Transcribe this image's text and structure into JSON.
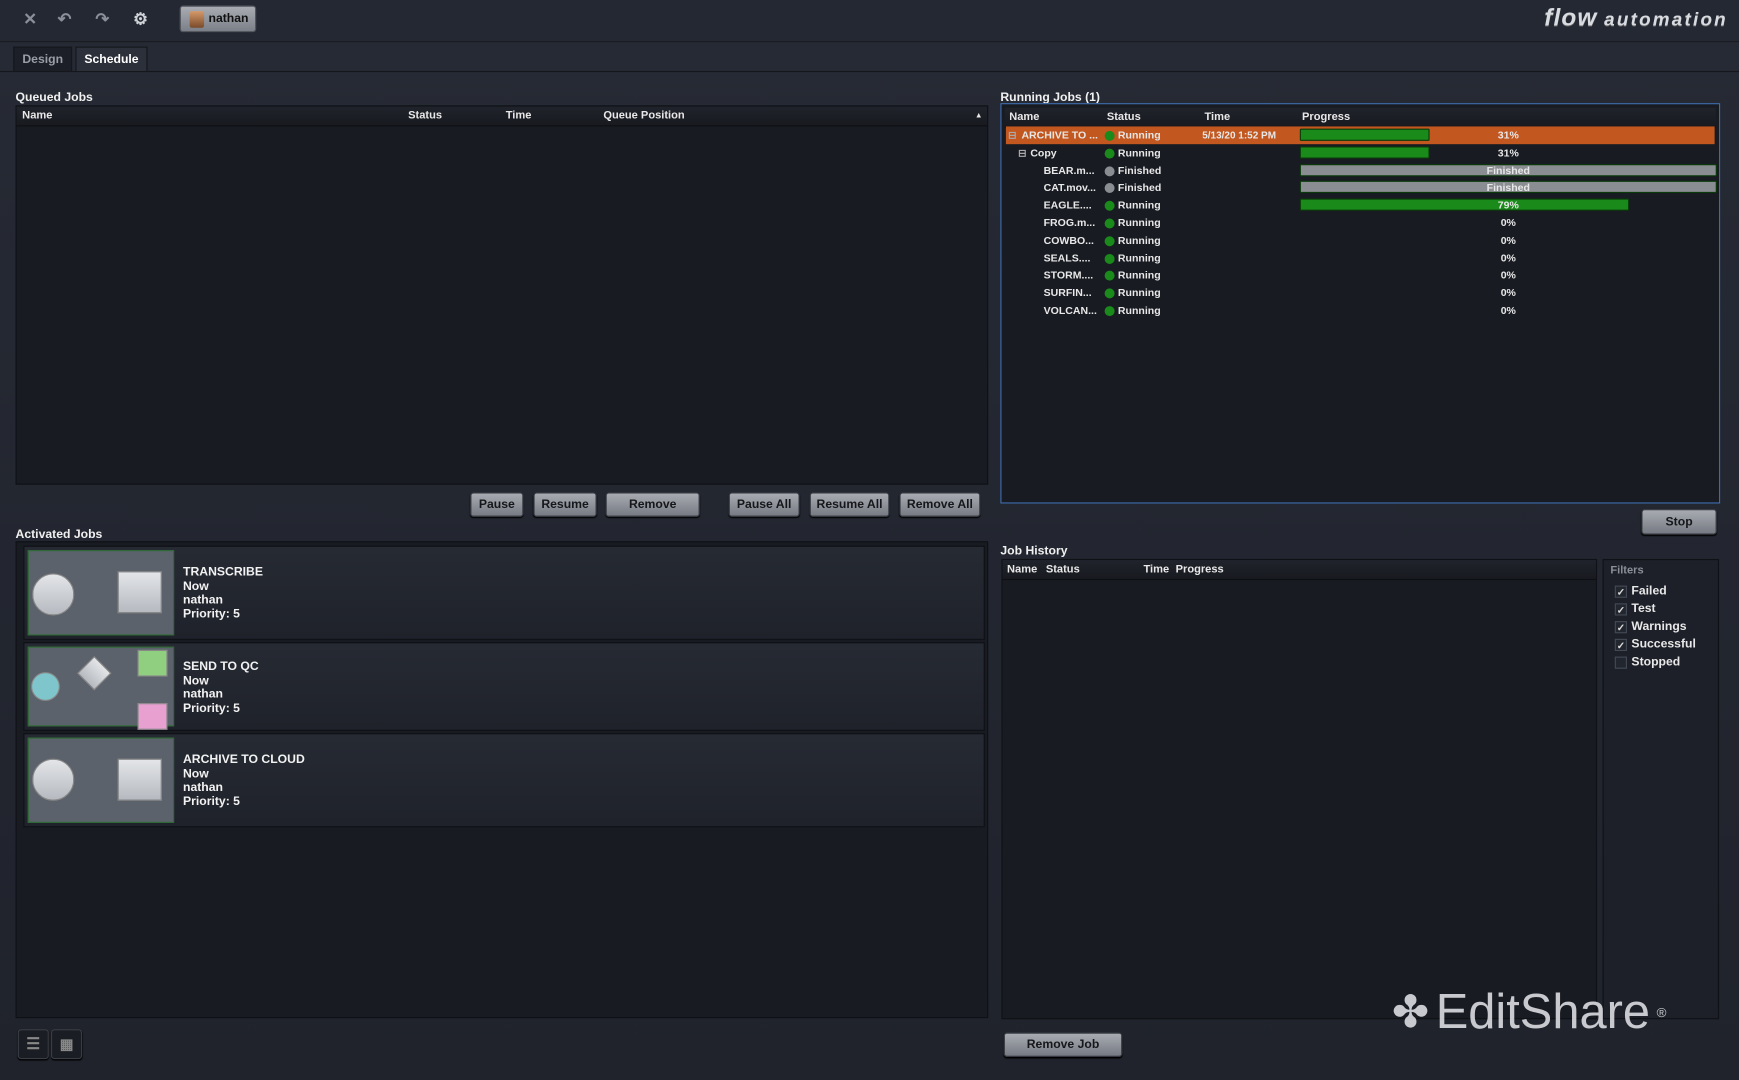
{
  "toolbar": {
    "icons": [
      "close-icon",
      "undo-icon",
      "redo-icon",
      "gears-icon"
    ],
    "user": "nathan"
  },
  "brand": {
    "logo_main": "flow",
    "logo_sub": "automation",
    "watermark": "EditShare"
  },
  "tabs": [
    {
      "label": "Design",
      "active": false
    },
    {
      "label": "Schedule",
      "active": true
    }
  ],
  "queued": {
    "title": "Queued Jobs",
    "columns": [
      "Name",
      "Status",
      "Time",
      "Queue Position"
    ],
    "buttons": [
      "Pause",
      "Resume",
      "Remove",
      "Pause All",
      "Resume All",
      "Remove All"
    ]
  },
  "activated": {
    "title": "Activated Jobs",
    "jobs": [
      {
        "name": "TRANSCRIBE",
        "when": "Now",
        "user": "nathan",
        "priority": "Priority: 5"
      },
      {
        "name": "SEND TO QC",
        "when": "Now",
        "user": "nathan",
        "priority": "Priority: 5"
      },
      {
        "name": "ARCHIVE TO CLOUD",
        "when": "Now",
        "user": "nathan",
        "priority": "Priority: 5"
      }
    ]
  },
  "running": {
    "title": "Running Jobs (1)",
    "columns": [
      "Name",
      "Status",
      "Time",
      "Progress"
    ],
    "rows": [
      {
        "name": "ARCHIVE TO ...",
        "status": "Running",
        "time": "5/13/20 1:52 PM",
        "progress": 31,
        "label": "31%"
      },
      {
        "name": "Copy",
        "status": "Running",
        "time": "",
        "progress": 31,
        "label": "31%"
      },
      {
        "name": "BEAR.m...",
        "status": "Finished",
        "time": "",
        "progress": 100,
        "label": "Finished"
      },
      {
        "name": "CAT.mov...",
        "status": "Finished",
        "time": "",
        "progress": 100,
        "label": "Finished"
      },
      {
        "name": "EAGLE....",
        "status": "Running",
        "time": "",
        "progress": 79,
        "label": "79%"
      },
      {
        "name": "FROG.m...",
        "status": "Running",
        "time": "",
        "progress": 0,
        "label": "0%"
      },
      {
        "name": "COWBO...",
        "status": "Running",
        "time": "",
        "progress": 0,
        "label": "0%"
      },
      {
        "name": "SEALS....",
        "status": "Running",
        "time": "",
        "progress": 0,
        "label": "0%"
      },
      {
        "name": "STORM....",
        "status": "Running",
        "time": "",
        "progress": 0,
        "label": "0%"
      },
      {
        "name": "SURFIN...",
        "status": "Running",
        "time": "",
        "progress": 0,
        "label": "0%"
      },
      {
        "name": "VOLCAN...",
        "status": "Running",
        "time": "",
        "progress": 0,
        "label": "0%"
      }
    ],
    "stop": "Stop",
    "colors": {
      "selected": "#c2571f",
      "running": "#1a8a1a",
      "finished": "#8a8d92"
    }
  },
  "history": {
    "title": "Job History",
    "columns": [
      "Name",
      "Status",
      "Time",
      "Progress"
    ],
    "remove": "Remove Job",
    "filters_title": "Filters",
    "filters": [
      {
        "label": "Failed",
        "checked": true
      },
      {
        "label": "Test",
        "checked": true
      },
      {
        "label": "Warnings",
        "checked": true
      },
      {
        "label": "Successful",
        "checked": true
      },
      {
        "label": "Stopped",
        "checked": false
      }
    ]
  }
}
